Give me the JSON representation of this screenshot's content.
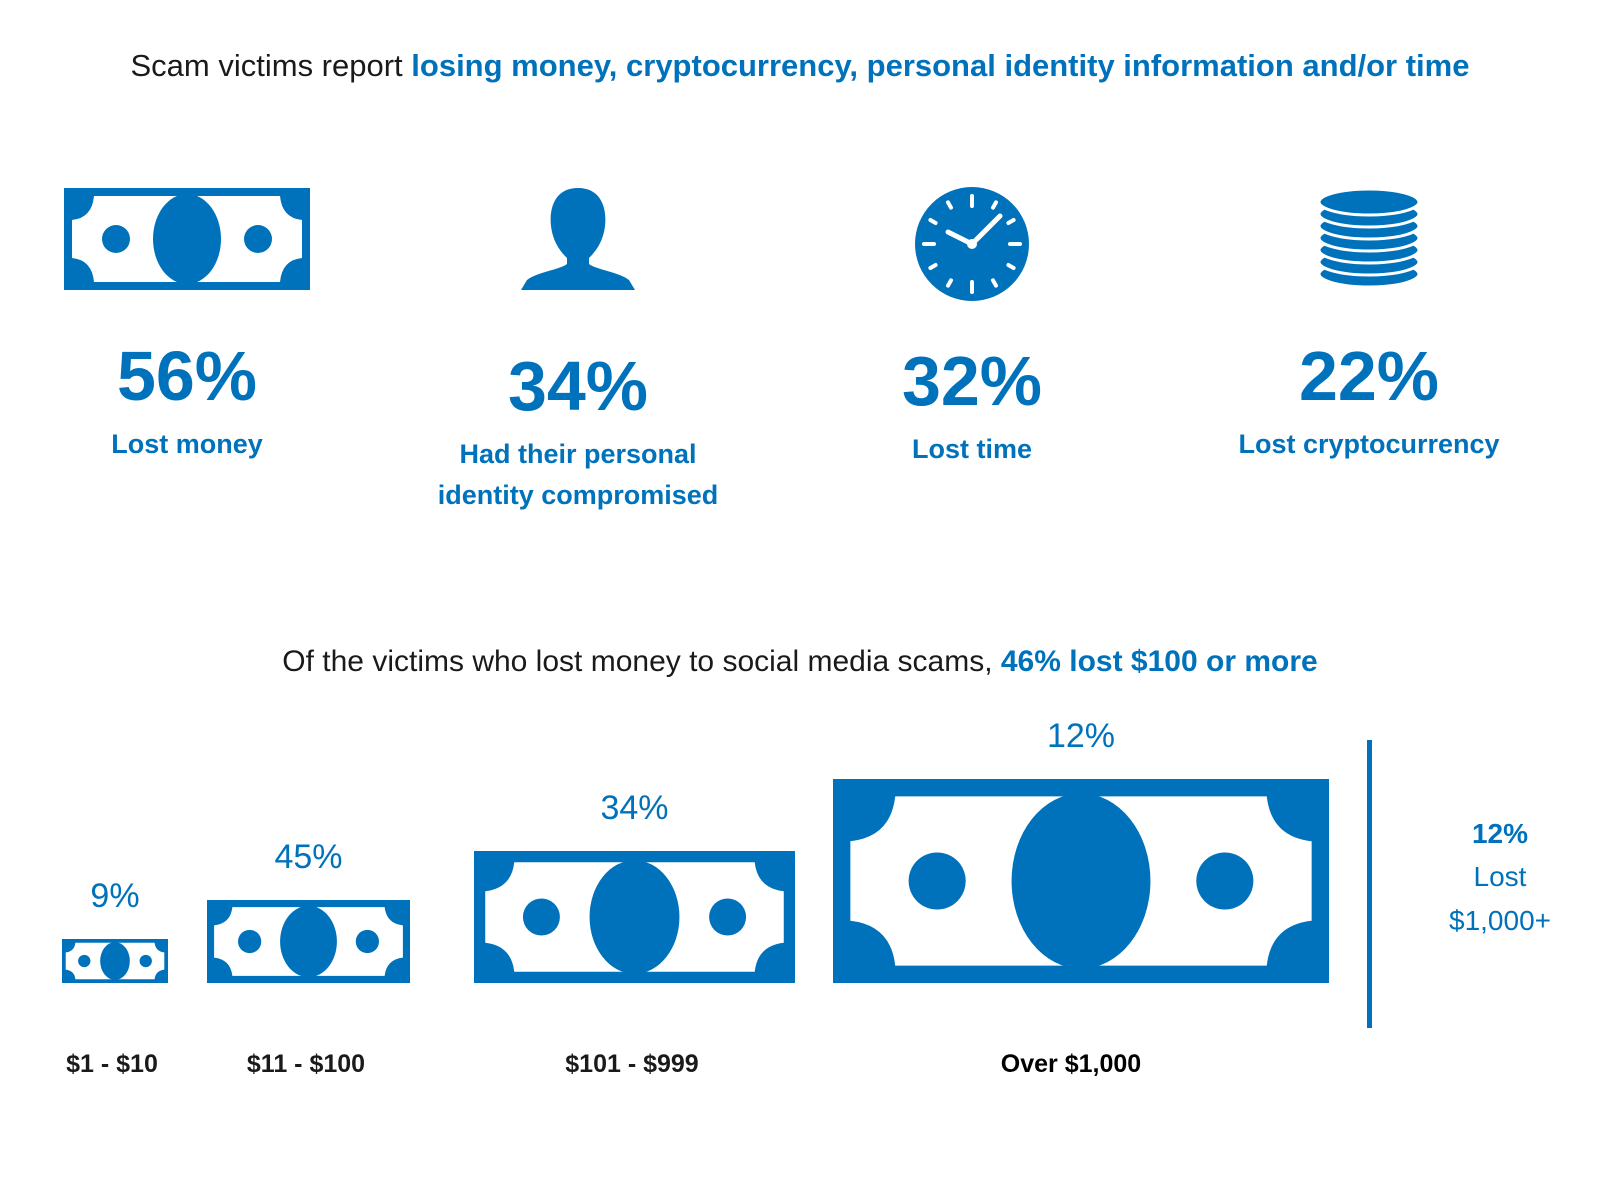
{
  "header": {
    "prefix": "Scam victims report ",
    "highlight": "losing money, cryptocurrency, personal identity information and/or time"
  },
  "stats": [
    {
      "value": "56%",
      "label_lines": [
        "Lost money"
      ],
      "icon": "dollar-bill-icon"
    },
    {
      "value": "34%",
      "label_lines": [
        "Had their personal",
        "identity compromised"
      ],
      "icon": "person-silhouette-icon"
    },
    {
      "value": "32%",
      "label_lines": [
        "Lost time"
      ],
      "icon": "clock-icon"
    },
    {
      "value": "22%",
      "label_lines": [
        "Lost cryptocurrency"
      ],
      "icon": "coin-stack-icon"
    }
  ],
  "subheader": {
    "prefix": "Of the victims who lost money to social media scams, ",
    "highlight": "46% lost $100 or more"
  },
  "chart_data": {
    "type": "bar",
    "categories": [
      "$1 - $10",
      "$11 - $100",
      "$101 - $999",
      "Over $1,000"
    ],
    "values": [
      9,
      45,
      34,
      12
    ],
    "value_labels": [
      "9%",
      "45%",
      "34%",
      "12%"
    ],
    "mark": "dollar-bill-icon",
    "bold_category_index": 3
  },
  "callout": {
    "value": "12%",
    "line1": "Lost",
    "line2": "$1,000+"
  },
  "colors": {
    "accent": "#0072bc",
    "text": "#1a1a1a",
    "background": "#ffffff"
  }
}
